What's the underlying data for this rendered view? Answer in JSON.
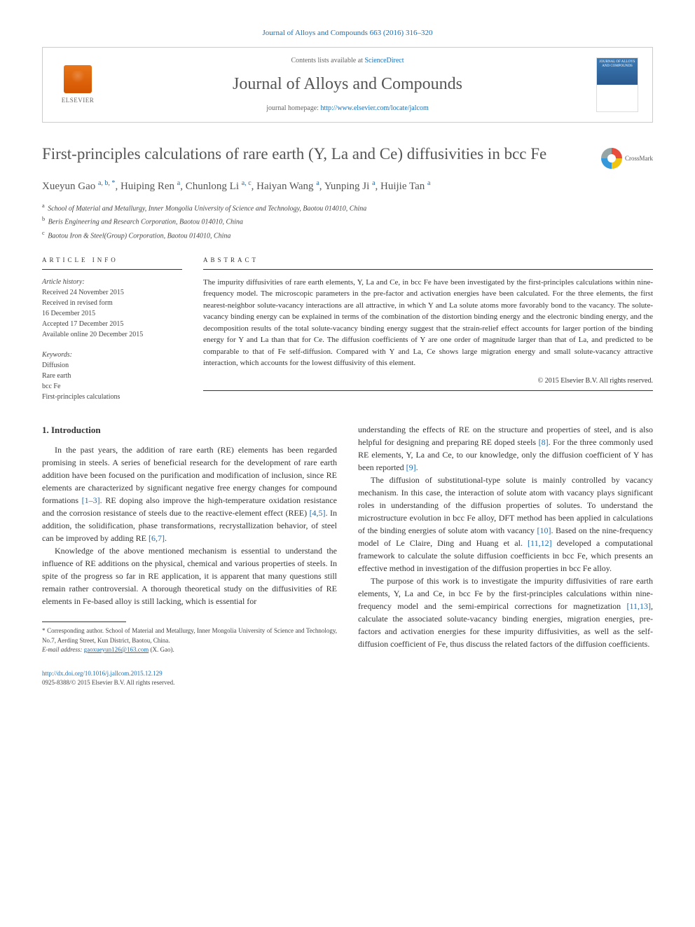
{
  "citation": "Journal of Alloys and Compounds 663 (2016) 316–320",
  "header": {
    "elsevier_label": "ELSEVIER",
    "contents_prefix": "Contents lists available at ",
    "contents_link": "ScienceDirect",
    "journal_name": "Journal of Alloys and Compounds",
    "homepage_prefix": "journal homepage: ",
    "homepage_url": "http://www.elsevier.com/locate/jalcom",
    "cover_text": "JOURNAL OF ALLOYS AND COMPOUNDS"
  },
  "title": "First-principles calculations of rare earth (Y, La and Ce) diffusivities in bcc Fe",
  "crossmark_label": "CrossMark",
  "authors_html": "Xueyun Gao <sup>a, b, *</sup>, Huiping Ren <sup>a</sup>, Chunlong Li <sup>a, c</sup>, Haiyan Wang <sup>a</sup>, Yunping Ji <sup>a</sup>, Huijie Tan <sup>a</sup>",
  "affiliations": [
    {
      "sup": "a",
      "text": "School of Material and Metallurgy, Inner Mongolia University of Science and Technology, Baotou 014010, China"
    },
    {
      "sup": "b",
      "text": "Beris Engineering and Research Corporation, Baotou 014010, China"
    },
    {
      "sup": "c",
      "text": "Baotou Iron & Steel(Group) Corporation, Baotou 014010, China"
    }
  ],
  "article_info": {
    "heading": "ARTICLE INFO",
    "history_label": "Article history:",
    "history": [
      "Received 24 November 2015",
      "Received in revised form",
      "16 December 2015",
      "Accepted 17 December 2015",
      "Available online 20 December 2015"
    ],
    "keywords_label": "Keywords:",
    "keywords": [
      "Diffusion",
      "Rare earth",
      "bcc Fe",
      "First-principles calculations"
    ]
  },
  "abstract": {
    "heading": "ABSTRACT",
    "text": "The impurity diffusivities of rare earth elements, Y, La and Ce, in bcc Fe have been investigated by the first-principles calculations within nine-frequency model. The microscopic parameters in the pre-factor and activation energies have been calculated. For the three elements, the first nearest-neighbor solute-vacancy interactions are all attractive, in which Y and La solute atoms more favorably bond to the vacancy. The solute-vacancy binding energy can be explained in terms of the combination of the distortion binding energy and the electronic binding energy, and the decomposition results of the total solute-vacancy binding energy suggest that the strain-relief effect accounts for larger portion of the binding energy for Y and La than that for Ce. The diffusion coefficients of Y are one order of magnitude larger than that of La, and predicted to be comparable to that of Fe self-diffusion. Compared with Y and La, Ce shows large migration energy and small solute-vacancy attractive interaction, which accounts for the lowest diffusivity of this element.",
    "copyright": "© 2015 Elsevier B.V. All rights reserved."
  },
  "intro": {
    "heading": "1. Introduction",
    "p1_pre": "In the past years, the addition of rare earth (RE) elements has been regarded promising in steels. A series of beneficial research for the development of rare earth addition have been focused on the purification and modification of inclusion, since RE elements are characterized by significant negative free energy changes for compound formations ",
    "p1_ref1": "[1–3]",
    "p1_mid": ". RE doping also improve the high-temperature oxidation resistance and the corrosion resistance of steels due to the reactive-element effect (REE) ",
    "p1_ref2": "[4,5]",
    "p1_mid2": ". In addition, the solidification, phase transformations, recrystallization behavior, of steel can be improved by adding RE ",
    "p1_ref3": "[6,7]",
    "p1_end": ".",
    "p2": "Knowledge of the above mentioned mechanism is essential to understand the influence of RE additions on the physical, chemical and various properties of steels. In spite of the progress so far in RE application, it is apparent that many questions still remain rather controversial. A thorough theoretical study on the diffusivities of RE elements in Fe-based alloy is still lacking, which is essential for",
    "p3_pre": "understanding the effects of RE on the structure and properties of steel, and is also helpful for designing and preparing RE doped steels ",
    "p3_ref1": "[8]",
    "p3_mid": ". For the three commonly used RE elements, Y, La and Ce, to our knowledge, only the diffusion coefficient of Y has been reported ",
    "p3_ref2": "[9]",
    "p3_end": ".",
    "p4_pre": "The diffusion of substitutional-type solute is mainly controlled by vacancy mechanism. In this case, the interaction of solute atom with vacancy plays significant roles in understanding of the diffusion properties of solutes. To understand the microstructure evolution in bcc Fe alloy, DFT method has been applied in calculations of the binding energies of solute atom with vacancy ",
    "p4_ref1": "[10]",
    "p4_mid": ". Based on the nine-frequency model of Le Claire, Ding and Huang et al. ",
    "p4_ref2": "[11,12]",
    "p4_end": " developed a computational framework to calculate the solute diffusion coefficients in bcc Fe, which presents an effective method in investigation of the diffusion properties in bcc Fe alloy.",
    "p5_pre": "The purpose of this work is to investigate the impurity diffusivities of rare earth elements, Y, La and Ce, in bcc Fe by the first-principles calculations within nine-frequency model and the semi-empirical corrections for magnetization ",
    "p5_ref1": "[11,13]",
    "p5_end": ", calculate the associated solute-vacancy binding energies, migration energies, pre-factors and activation energies for these impurity diffusivities, as well as the self-diffusion coefficient of Fe, thus discuss the related factors of the diffusion coefficients."
  },
  "footnote": {
    "corr_marker": "*",
    "corr_text": "Corresponding author. School of Material and Metallurgy, Inner Mongolia University of Science and Technology, No.7, Aerding Street, Kun District, Baotou, China.",
    "email_label": "E-mail address:",
    "email": "gaoxueyun126@163.com",
    "email_suffix": "(X. Gao)."
  },
  "footer": {
    "doi": "http://dx.doi.org/10.1016/j.jallcom.2015.12.129",
    "issn_line": "0925-8388/© 2015 Elsevier B.V. All rights reserved."
  },
  "colors": {
    "link": "#1a6fb5",
    "text": "#333333",
    "muted": "#555555",
    "orange": "#e8751a"
  }
}
